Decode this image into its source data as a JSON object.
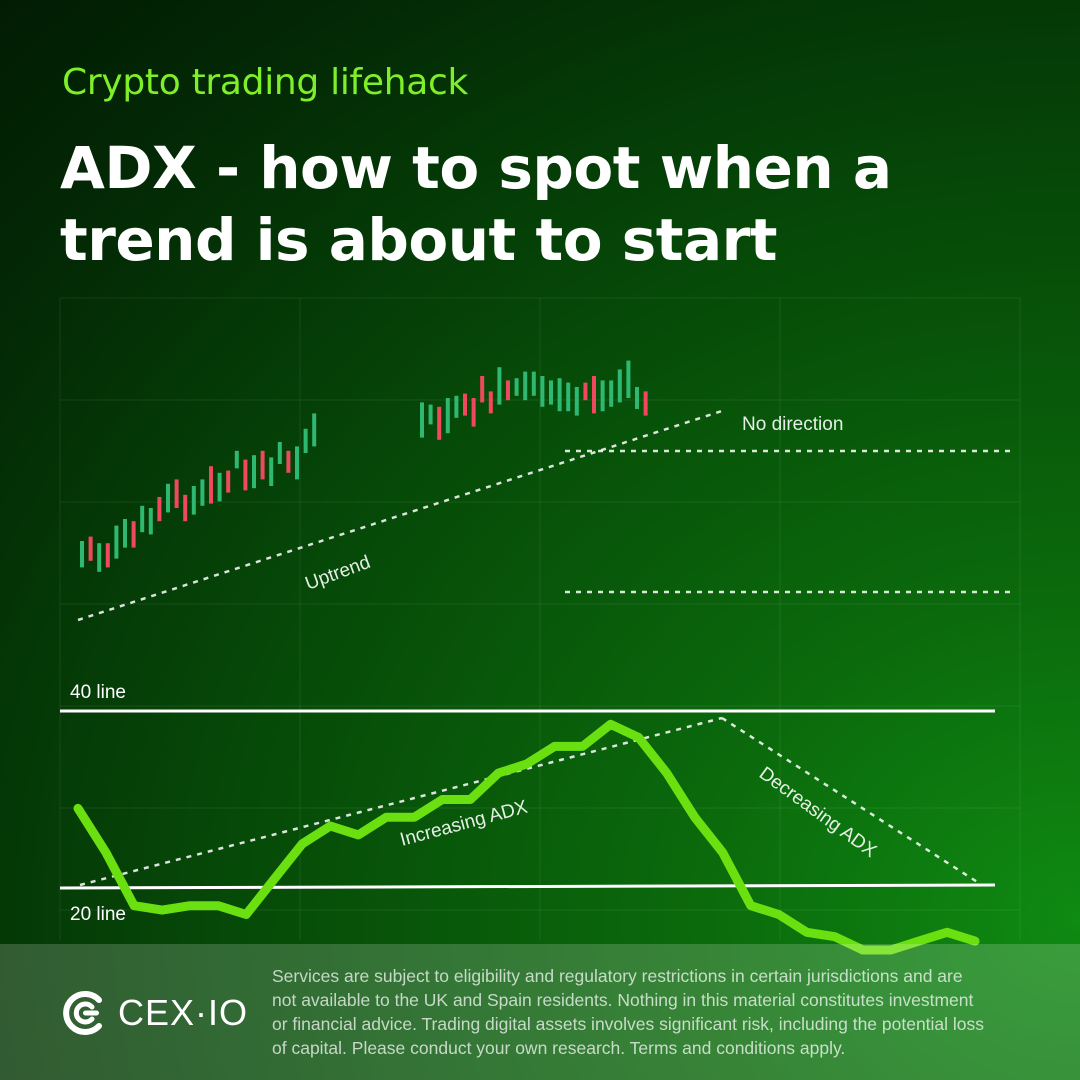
{
  "header": {
    "kicker": "Crypto trading lifehack",
    "title_lines": [
      "ADX - how to spot when a",
      "trend is about to start"
    ]
  },
  "chart_data": [
    {
      "type": "candlestick",
      "annotations": [
        "Uptrend",
        "No direction"
      ],
      "grid": true,
      "candles": [
        {
          "o": 45,
          "c": 33,
          "dir": "up"
        },
        {
          "o": 36,
          "c": 47,
          "dir": "down"
        },
        {
          "o": 44,
          "c": 31,
          "dir": "up"
        },
        {
          "o": 33,
          "c": 44,
          "dir": "down"
        },
        {
          "o": 37,
          "c": 52,
          "dir": "up"
        },
        {
          "o": 55,
          "c": 42,
          "dir": "up"
        },
        {
          "o": 42,
          "c": 54,
          "dir": "down"
        },
        {
          "o": 49,
          "c": 61,
          "dir": "up"
        },
        {
          "o": 60,
          "c": 48,
          "dir": "up"
        },
        {
          "o": 54,
          "c": 65,
          "dir": "down"
        },
        {
          "o": 58,
          "c": 71,
          "dir": "up"
        },
        {
          "o": 60,
          "c": 73,
          "dir": "down"
        },
        {
          "o": 66,
          "c": 54,
          "dir": "down"
        },
        {
          "o": 57,
          "c": 70,
          "dir": "up"
        },
        {
          "o": 73,
          "c": 61,
          "dir": "up"
        },
        {
          "o": 62,
          "c": 79,
          "dir": "down"
        },
        {
          "o": 76,
          "c": 63,
          "dir": "up"
        },
        {
          "o": 67,
          "c": 77,
          "dir": "down"
        },
        {
          "o": 78,
          "c": 86,
          "dir": "up"
        },
        {
          "o": 82,
          "c": 68,
          "dir": "down"
        },
        {
          "o": 69,
          "c": 84,
          "dir": "up"
        },
        {
          "o": 86,
          "c": 73,
          "dir": "down"
        },
        {
          "o": 70,
          "c": 83,
          "dir": "up"
        },
        {
          "o": 80,
          "c": 90,
          "dir": "up"
        },
        {
          "o": 86,
          "c": 76,
          "dir": "down"
        },
        {
          "o": 73,
          "c": 88,
          "dir": "up"
        },
        {
          "o": 85,
          "c": 96,
          "dir": "up"
        },
        {
          "o": 103,
          "c": 88,
          "dir": "up"
        },
        {
          "o": 92,
          "c": 108,
          "dir": "up"
        },
        {
          "o": 98,
          "c": 107,
          "dir": "up"
        },
        {
          "o": 106,
          "c": 91,
          "dir": "down"
        },
        {
          "o": 94,
          "c": 110,
          "dir": "up"
        },
        {
          "o": 101,
          "c": 111,
          "dir": "up"
        },
        {
          "o": 112,
          "c": 102,
          "dir": "down"
        },
        {
          "o": 97,
          "c": 110,
          "dir": "down"
        },
        {
          "o": 108,
          "c": 120,
          "dir": "down"
        },
        {
          "o": 113,
          "c": 103,
          "dir": "down"
        },
        {
          "o": 107,
          "c": 124,
          "dir": "up"
        },
        {
          "o": 118,
          "c": 109,
          "dir": "down"
        },
        {
          "o": 119,
          "c": 111,
          "dir": "up"
        },
        {
          "o": 109,
          "c": 122,
          "dir": "up"
        },
        {
          "o": 122,
          "c": 111,
          "dir": "up"
        },
        {
          "o": 120,
          "c": 106,
          "dir": "up"
        },
        {
          "o": 107,
          "c": 118,
          "dir": "up"
        },
        {
          "o": 119,
          "c": 104,
          "dir": "up"
        },
        {
          "o": 104,
          "c": 117,
          "dir": "up"
        },
        {
          "o": 115,
          "c": 102,
          "dir": "up"
        },
        {
          "o": 109,
          "c": 117,
          "dir": "down"
        },
        {
          "o": 103,
          "c": 120,
          "dir": "down"
        },
        {
          "o": 118,
          "c": 104,
          "dir": "up"
        },
        {
          "o": 106,
          "c": 118,
          "dir": "up"
        },
        {
          "o": 108,
          "c": 123,
          "dir": "up"
        },
        {
          "o": 127,
          "c": 110,
          "dir": "up"
        },
        {
          "o": 105,
          "c": 115,
          "dir": "up"
        },
        {
          "o": 113,
          "c": 102,
          "dir": "down"
        }
      ]
    },
    {
      "type": "line",
      "series": [
        {
          "name": "ADX",
          "values": [
            29,
            24,
            18,
            17.5,
            18,
            18,
            17,
            21,
            25,
            27,
            26,
            28,
            28,
            30,
            30,
            33,
            34,
            36,
            36,
            38.5,
            37,
            33,
            28,
            24,
            18,
            17,
            15,
            14.5,
            13,
            13,
            14,
            15,
            14
          ]
        }
      ],
      "reference_lines": [
        {
          "label": "40 line",
          "y": 40
        },
        {
          "label": "20 line",
          "y": 20
        }
      ],
      "annotations": [
        "Increasing ADX",
        "Decreasing ADX"
      ],
      "grid": true
    }
  ],
  "footer": {
    "brand": "CEX·IO",
    "disclaimer_lines": [
      "Services are subject to eligibility and regulatory restrictions in certain jurisdictions and are",
      "not available to the UK and Spain residents. Nothing in this material constitutes investment",
      "or financial advice. Trading digital assets involves significant risk, including the potential loss",
      "of capital. Please conduct your own research. Terms and conditions apply."
    ]
  },
  "colors": {
    "accent": "#7ef02a",
    "candle_up": "#2fb872",
    "candle_down": "#f0485e",
    "adx_line": "#6be010"
  }
}
